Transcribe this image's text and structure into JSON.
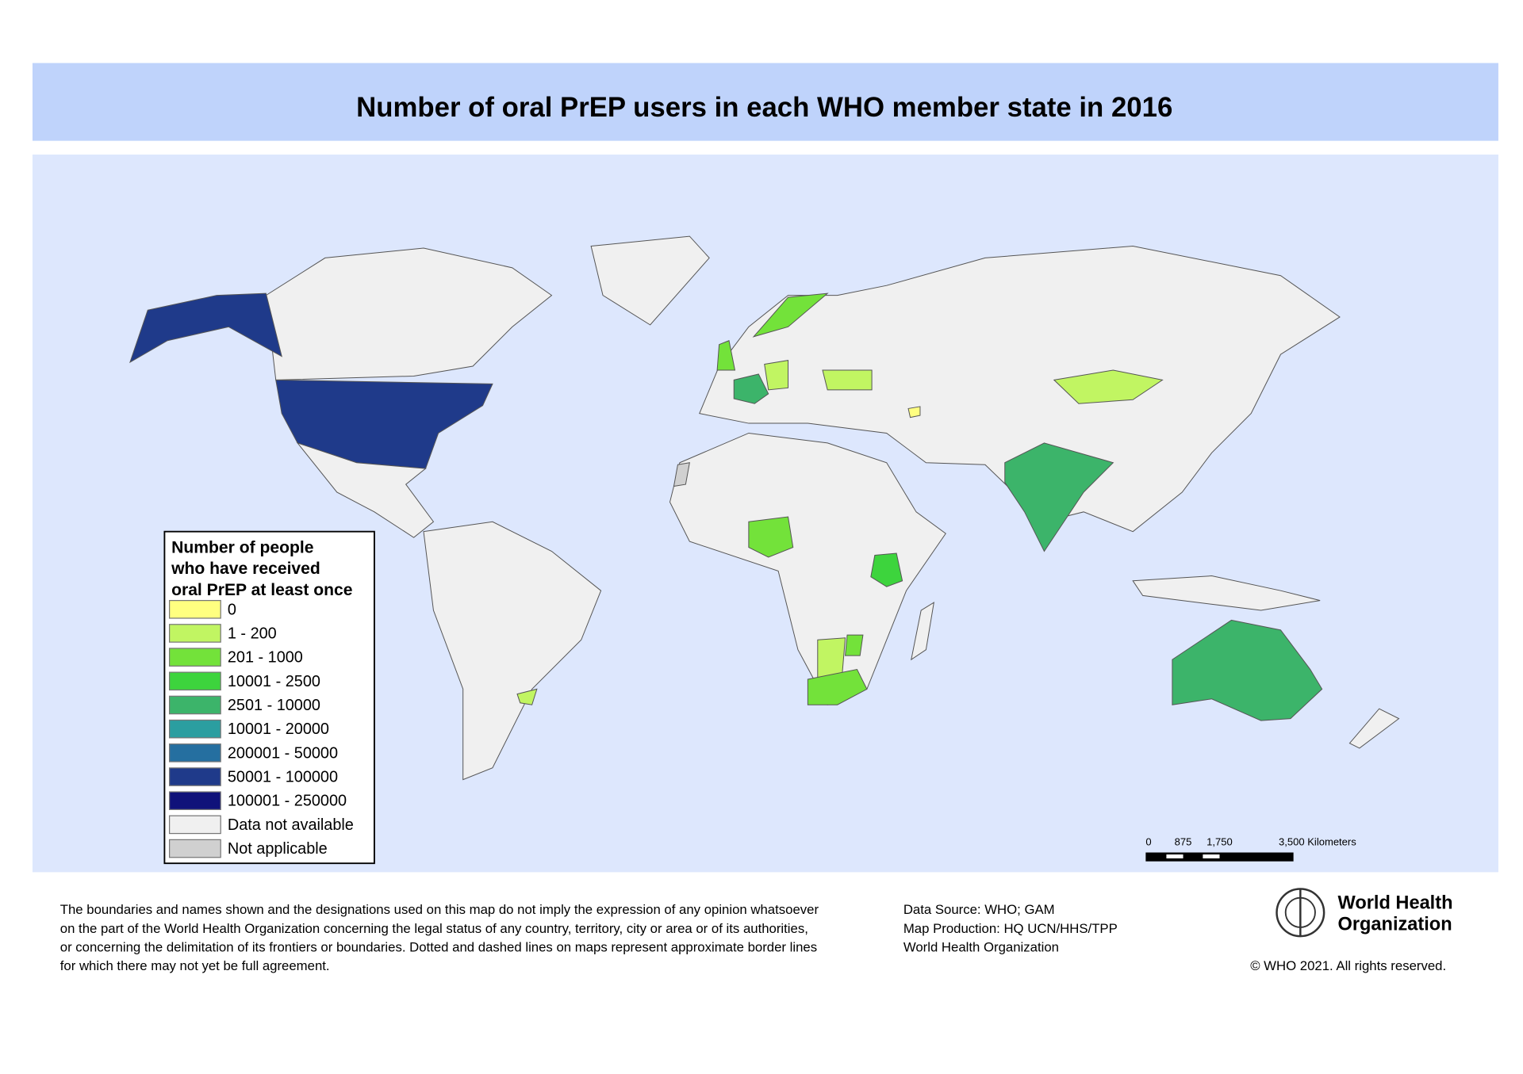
{
  "header": {
    "title": "Number of oral PrEP users in each WHO member state in 2016"
  },
  "legend": {
    "title": [
      "Number of people",
      "who have received",
      "oral PrEP at least once"
    ],
    "items": [
      {
        "label": "0",
        "color": "#ffff80"
      },
      {
        "label": "1 - 200",
        "color": "#c1f562"
      },
      {
        "label": "201 - 1000",
        "color": "#73e23a"
      },
      {
        "label": "10001 - 2500",
        "color": "#3dd43d"
      },
      {
        "label": "2501 - 10000",
        "color": "#3cb46a"
      },
      {
        "label": "10001 - 20000",
        "color": "#2b9ea0"
      },
      {
        "label": "200001 - 50000",
        "color": "#256fa0"
      },
      {
        "label": "50001 - 100000",
        "color": "#1f3a8a"
      },
      {
        "label": "100001 - 250000",
        "color": "#10127a"
      },
      {
        "label": "Data not available",
        "color": "#f0f0f0"
      },
      {
        "label": "Not applicable",
        "color": "#d0d0d0"
      }
    ]
  },
  "scale_bar": {
    "labels": [
      "0",
      "875",
      "1,750",
      "3,500 Kilometers"
    ]
  },
  "footer": {
    "disclaimer": [
      "The boundaries and names shown and the designations used on this map do not imply the expression of any opinion whatsoever",
      "on the part of the World Health Organization concerning the legal status of any country, territory, city or area or of its authorities,",
      "or concerning the delimitation of its frontiers or boundaries. Dotted and dashed lines on maps represent approximate border lines",
      "for which there may not yet be full agreement."
    ],
    "source": [
      "Data Source: WHO; GAM",
      "Map Production: HQ UCN/HHS/TPP",
      "World Health Organization"
    ],
    "logo": [
      "World Health",
      "Organization"
    ],
    "copyright": "© WHO 2021. All rights reserved."
  }
}
